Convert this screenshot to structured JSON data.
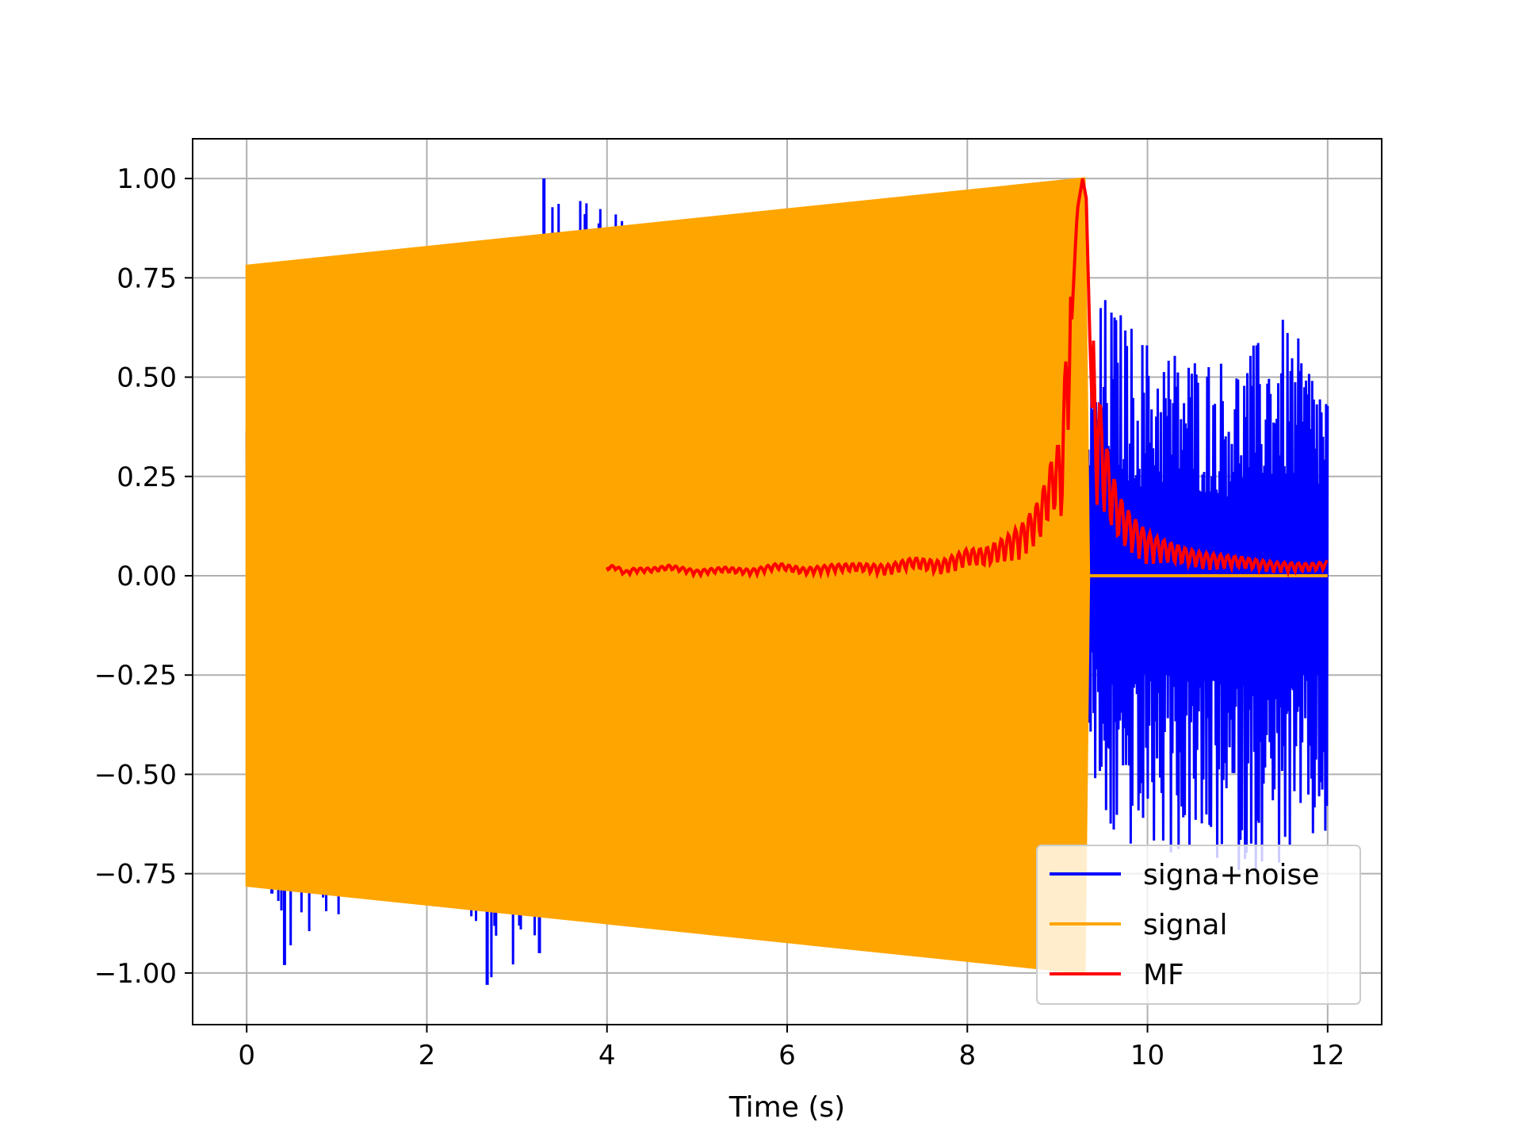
{
  "chart_data": {
    "type": "line",
    "title": "",
    "xlabel": "Time (s)",
    "ylabel": "",
    "xlim": [
      -0.6,
      12.6
    ],
    "ylim": [
      -1.13,
      1.1
    ],
    "xticks": [
      0,
      2,
      4,
      6,
      8,
      10,
      12
    ],
    "xtick_labels": [
      "0",
      "2",
      "4",
      "6",
      "8",
      "10",
      "12"
    ],
    "yticks": [
      1.0,
      0.75,
      0.5,
      0.25,
      0.0,
      -0.25,
      -0.5,
      -0.75,
      -1.0
    ],
    "ytick_labels": [
      "1.00",
      "0.75",
      "0.50",
      "0.25",
      "0.00",
      "−0.25",
      "−0.50",
      "−0.75",
      "−1.00"
    ],
    "grid": true,
    "legend_position": "lower-right",
    "series": [
      {
        "name": "signa+noise",
        "color": "#0000ff",
        "description_points": {
          "x": [
            0,
            0.28,
            0.42,
            2.22,
            2.67,
            3.25,
            3.3,
            9.35,
            9.5,
            10.0,
            10.5,
            11.0,
            11.5,
            12.0
          ],
          "y_max": [
            0.47,
            0.6,
            0.6,
            0.82,
            0.6,
            0.85,
            1.0,
            0.5,
            0.72,
            0.6,
            0.57,
            0.55,
            0.65,
            0.5
          ],
          "y_min": [
            -0.7,
            -0.8,
            -0.98,
            -0.6,
            -1.03,
            -0.95,
            -0.6,
            -0.45,
            -0.68,
            -0.7,
            -0.72,
            -0.75,
            -0.74,
            -0.68
          ]
        }
      },
      {
        "name": "signal",
        "color": "#ffa500",
        "envelope": {
          "x": [
            0,
            9.3,
            9.35,
            12.0
          ],
          "upper": [
            0.78,
            1.0,
            0.0,
            0.0
          ],
          "lower": [
            -0.78,
            -1.0,
            0.0,
            0.0
          ]
        }
      },
      {
        "name": "MF",
        "color": "#ff0000",
        "x": [
          4.0,
          4.1,
          4.2,
          4.3,
          4.5,
          4.7,
          5.0,
          5.3,
          5.6,
          5.9,
          6.2,
          6.5,
          6.8,
          7.1,
          7.4,
          7.7,
          8.0,
          8.2,
          8.4,
          8.6,
          8.8,
          8.95,
          9.05,
          9.15,
          9.22,
          9.28,
          9.32,
          9.36,
          9.42,
          9.5,
          9.6,
          9.7,
          9.85,
          10.0,
          10.3,
          10.6,
          11.0,
          11.4,
          11.8,
          12.0
        ],
        "y": [
          0.02,
          0.02,
          0.0,
          0.01,
          0.01,
          0.02,
          0.0,
          0.01,
          0.0,
          0.02,
          0.0,
          0.01,
          0.01,
          0.0,
          0.02,
          0.0,
          0.03,
          0.02,
          0.04,
          0.06,
          0.1,
          0.18,
          0.15,
          0.6,
          0.92,
          1.0,
          0.95,
          0.6,
          0.2,
          0.18,
          0.12,
          0.08,
          0.06,
          0.04,
          0.03,
          0.02,
          0.02,
          0.01,
          0.01,
          0.02
        ]
      }
    ]
  }
}
